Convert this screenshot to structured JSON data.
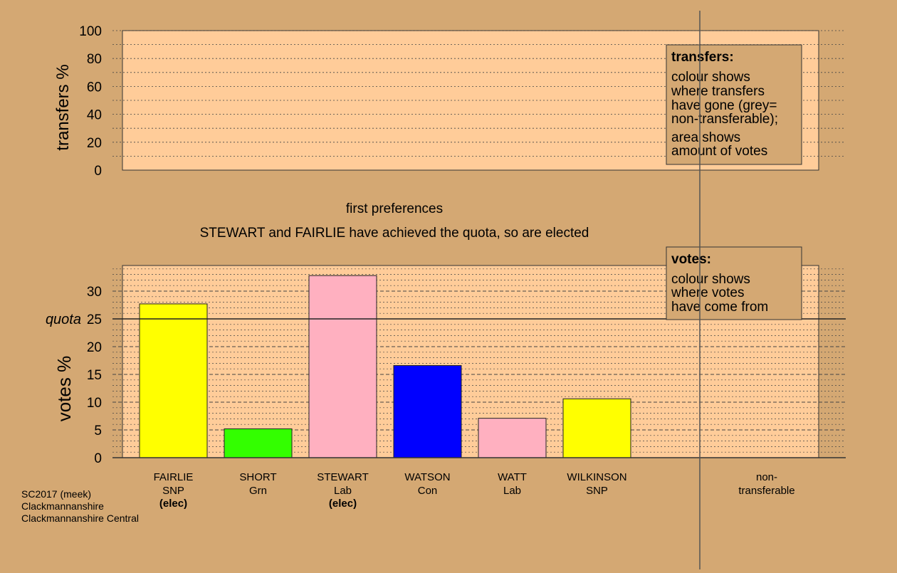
{
  "colors": {
    "background": "#d4a873",
    "panel": "#ffcc99",
    "legend_box": "#d4a873",
    "grid": "#333333"
  },
  "transfers_panel": {
    "ylabel": "transfers %",
    "ticks": [
      0,
      20,
      40,
      60,
      80,
      100
    ],
    "legend": {
      "title": "transfers:",
      "lines1": [
        "colour shows",
        "where transfers",
        "have gone (grey=",
        "non-transferable);"
      ],
      "lines2": [
        "area shows",
        "amount of votes"
      ]
    }
  },
  "headings": {
    "stage": "first preferences",
    "message": "STEWART and FAIRLIE have achieved the quota, so are elected"
  },
  "votes_legend": {
    "title": "votes:",
    "lines": [
      "colour shows",
      "where votes",
      "have come from"
    ]
  },
  "quota_label": "quota",
  "footer": [
    "SC2017 (meek)",
    "Clackmannanshire",
    "Clackmannanshire Central"
  ],
  "non_transferable_label": [
    "non-",
    "transferable"
  ],
  "chart_data": {
    "type": "bar",
    "ylabel": "votes %",
    "ylim": [
      0,
      34.5
    ],
    "yticks": [
      0,
      5,
      10,
      15,
      20,
      25,
      30
    ],
    "quota": 25,
    "categories": [
      {
        "name": "FAIRLIE",
        "party": "SNP",
        "status": "(elec)"
      },
      {
        "name": "SHORT",
        "party": "Grn",
        "status": ""
      },
      {
        "name": "STEWART",
        "party": "Lab",
        "status": "(elec)"
      },
      {
        "name": "WATSON",
        "party": "Con",
        "status": ""
      },
      {
        "name": "WATT",
        "party": "Lab",
        "status": ""
      },
      {
        "name": "WILKINSON",
        "party": "SNP",
        "status": ""
      }
    ],
    "values": [
      27.7,
      5.2,
      32.8,
      16.6,
      7.1,
      10.6
    ],
    "colors": [
      "#ffff00",
      "#33ff00",
      "#ffb0c0",
      "#0000ff",
      "#ffb0c0",
      "#ffff00"
    ]
  }
}
